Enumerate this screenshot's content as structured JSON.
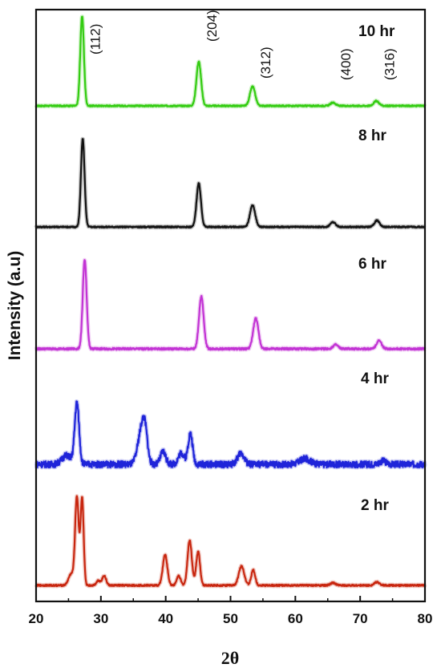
{
  "chart_data": {
    "type": "line",
    "title": "",
    "xlabel": "2θ",
    "ylabel": "Intensity (a.u)",
    "xlim": [
      20,
      80
    ],
    "x_ticks": [
      20,
      30,
      40,
      50,
      60,
      70,
      80
    ],
    "y_ticks_shown": false,
    "grid": false,
    "legend": "none",
    "series": [
      {
        "name": "10 hr",
        "color": "#33cc11",
        "baseline": 4,
        "noise": 0.2,
        "peaks": [
          [
            27.1,
            0.28,
            112
          ],
          [
            45.1,
            0.36,
            55
          ],
          [
            53.4,
            0.4,
            24
          ],
          [
            65.8,
            0.4,
            4
          ],
          [
            72.5,
            0.4,
            6
          ]
        ]
      },
      {
        "name": "8 hr",
        "color": "#111111",
        "baseline": 3,
        "noise": 0.2,
        "peaks": [
          [
            27.2,
            0.28,
            110
          ],
          [
            45.1,
            0.34,
            54
          ],
          [
            53.4,
            0.4,
            27
          ],
          [
            65.8,
            0.4,
            6
          ],
          [
            72.6,
            0.4,
            8
          ]
        ]
      },
      {
        "name": "6 hr",
        "color": "#c233d4",
        "baseline": 3,
        "noise": 0.3,
        "peaks": [
          [
            27.5,
            0.3,
            111
          ],
          [
            45.5,
            0.36,
            65
          ],
          [
            53.9,
            0.4,
            38
          ],
          [
            66.2,
            0.4,
            5
          ],
          [
            72.9,
            0.4,
            10
          ]
        ]
      },
      {
        "name": "4 hr",
        "color": "#1f24d9",
        "baseline": 3,
        "noise": 1.0,
        "peaks": [
          [
            26.3,
            0.34,
            76
          ],
          [
            24.7,
            0.7,
            11
          ],
          [
            36.2,
            0.55,
            38
          ],
          [
            36.8,
            0.4,
            34
          ],
          [
            39.6,
            0.4,
            16
          ],
          [
            42.4,
            0.45,
            14
          ],
          [
            43.8,
            0.35,
            38
          ],
          [
            51.6,
            0.5,
            14
          ],
          [
            61.5,
            0.8,
            7
          ],
          [
            73.5,
            0.5,
            4
          ]
        ]
      },
      {
        "name": "2 hr",
        "color": "#c8260f",
        "baseline": 3,
        "noise": 0.25,
        "peaks": [
          [
            26.3,
            0.28,
            110
          ],
          [
            27.1,
            0.24,
            108
          ],
          [
            25.4,
            0.4,
            14
          ],
          [
            29.6,
            0.3,
            6
          ],
          [
            30.5,
            0.3,
            12
          ],
          [
            39.9,
            0.35,
            38
          ],
          [
            42.0,
            0.3,
            12
          ],
          [
            43.7,
            0.33,
            56
          ],
          [
            45.0,
            0.3,
            42
          ],
          [
            51.7,
            0.42,
            24
          ],
          [
            53.5,
            0.3,
            19
          ],
          [
            65.8,
            0.4,
            3
          ],
          [
            72.6,
            0.4,
            4
          ]
        ]
      }
    ],
    "peak_labels": [
      {
        "text": "(112)",
        "x": 27.1
      },
      {
        "text": "(204)",
        "x": 45.1
      },
      {
        "text": "(312)",
        "x": 53.4
      },
      {
        "text": "(400)",
        "x": 65.8
      },
      {
        "text": "(316)",
        "x": 72.5
      }
    ]
  }
}
